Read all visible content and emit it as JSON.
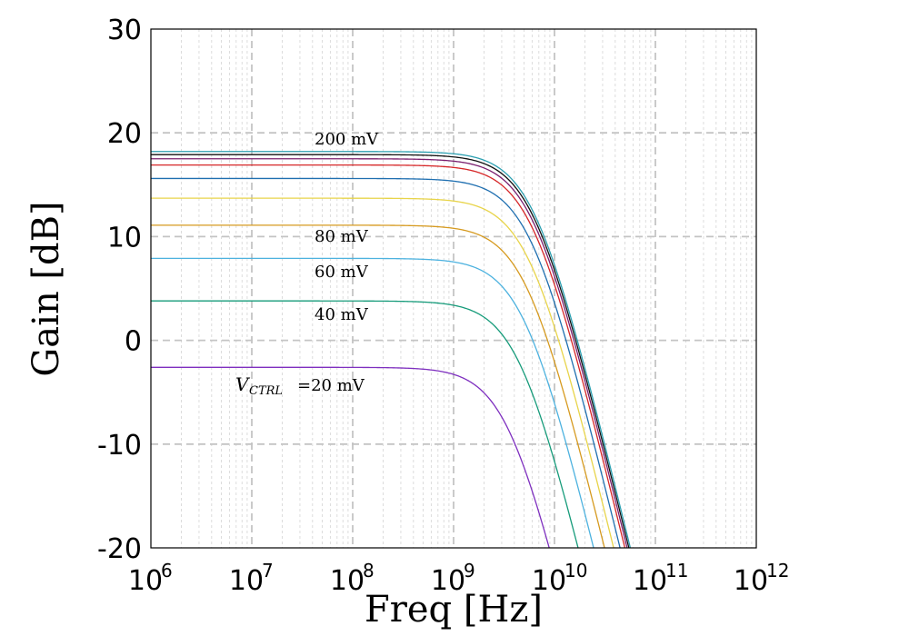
{
  "chart_data": {
    "type": "line",
    "xlabel": "Freq [Hz]",
    "ylabel": "Gain [dB]",
    "x_scale": "log",
    "xlim": [
      1000000,
      1000000000000
    ],
    "ylim": [
      -20,
      30
    ],
    "x_tick_base": "10",
    "x_tick_exponents": [
      "6",
      "7",
      "8",
      "9",
      "10",
      "11",
      "12"
    ],
    "y_ticks": [
      "30",
      "20",
      "10",
      "0",
      "-10",
      "-20"
    ],
    "grid": true,
    "legend": "none",
    "series": [
      {
        "label": "V_CTRL=20 mV",
        "color": "#7e2fbf",
        "dc_gain": -2.6,
        "pole_hz": 3500000000
      },
      {
        "label": "40 mV",
        "color": "#169b7a",
        "dc_gain": 3.8,
        "pole_hz": 4500000000
      },
      {
        "label": "60 mV",
        "color": "#4db2df",
        "dc_gain": 7.9,
        "pole_hz": 5000000000
      },
      {
        "label": "80 mV",
        "color": "#d69a1f",
        "dc_gain": 11.1,
        "pole_hz": 5300000000
      },
      {
        "label": "",
        "color": "#e8d44a",
        "dc_gain": 13.7,
        "pole_hz": 5600000000
      },
      {
        "label": "",
        "color": "#1f6fb0",
        "dc_gain": 15.6,
        "pole_hz": 5800000000
      },
      {
        "label": "",
        "color": "#d62728",
        "dc_gain": 16.9,
        "pole_hz": 6000000000
      },
      {
        "label": "",
        "color": "#7a1f6f",
        "dc_gain": 17.5,
        "pole_hz": 6100000000
      },
      {
        "label": "",
        "color": "#111111",
        "dc_gain": 17.9,
        "pole_hz": 6200000000
      },
      {
        "label": "200 mV",
        "color": "#2b9fb0",
        "dc_gain": 18.2,
        "pole_hz": 6300000000
      }
    ],
    "annotations": {
      "a200": "200 mV",
      "a80": "80 mV",
      "a60": "60 mV",
      "a40": "40 mV",
      "a20_prefix": "V",
      "a20_sub": "CTRL",
      "a20_suffix": "=20 mV"
    }
  }
}
